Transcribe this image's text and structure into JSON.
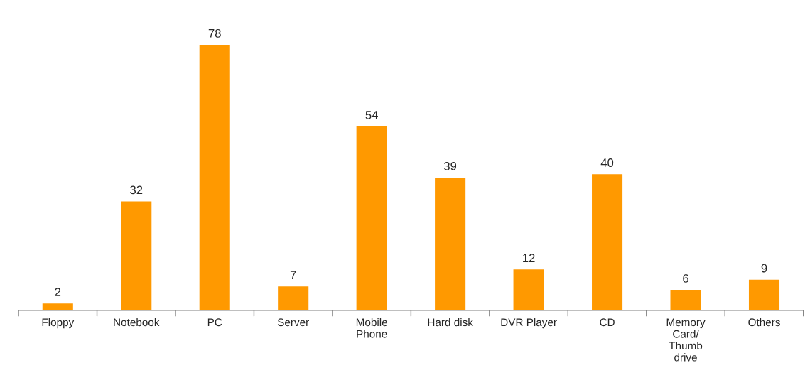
{
  "chart_data": {
    "type": "bar",
    "categories": [
      "Floppy",
      "Notebook",
      "PC",
      "Server",
      "Mobile\nPhone",
      "Hard disk",
      "DVR Player",
      "CD",
      "Memory\nCard/\nThumb\ndrive",
      "Others"
    ],
    "values": [
      2,
      32,
      78,
      7,
      54,
      39,
      12,
      40,
      6,
      9
    ],
    "color": "#ff9900",
    "data_labels": true,
    "grid": false,
    "legend": false
  }
}
